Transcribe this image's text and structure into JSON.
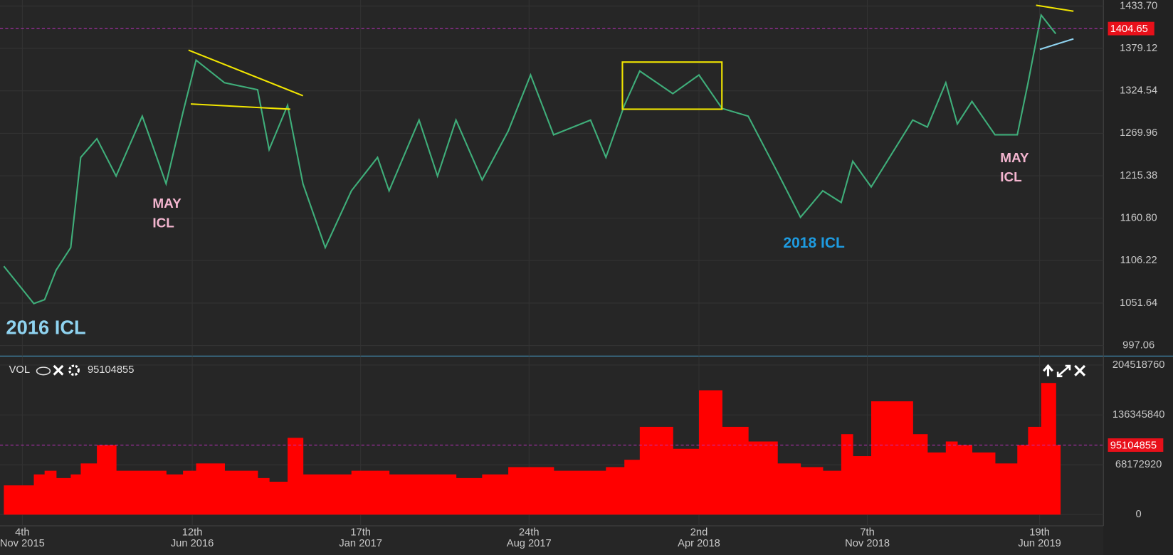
{
  "chart_data": [
    {
      "type": "line",
      "color": "#3fae7a",
      "x": [
        "2015-10-11",
        "2015-11-19",
        "2015-12-03",
        "2015-12-18",
        "2016-01-06",
        "2016-01-19",
        "2016-02-09",
        "2016-03-05",
        "2016-04-08",
        "2016-05-09",
        "2016-05-31",
        "2016-06-17",
        "2016-07-24",
        "2016-09-05",
        "2016-09-20",
        "2016-10-14",
        "2016-11-03",
        "2016-12-02",
        "2017-01-05",
        "2017-02-08",
        "2017-02-23",
        "2017-04-03",
        "2017-04-27",
        "2017-05-21",
        "2017-06-24",
        "2017-07-28",
        "2017-08-26",
        "2017-09-25",
        "2017-11-12",
        "2017-12-02",
        "2017-12-26",
        "2018-01-15",
        "2018-02-27",
        "2018-04-02",
        "2018-05-02",
        "2018-06-05",
        "2018-07-13",
        "2018-08-12",
        "2018-09-10",
        "2018-10-04",
        "2018-10-19",
        "2018-11-12",
        "2019-01-05",
        "2019-01-24",
        "2019-02-17",
        "2019-03-04",
        "2019-03-23",
        "2019-04-22",
        "2019-05-21",
        "2019-06-04",
        "2019-06-21",
        "2019-07-10"
      ],
      "values": [
        1099,
        1051,
        1056,
        1094,
        1123,
        1239,
        1263,
        1215,
        1292,
        1205,
        1297,
        1364,
        1335,
        1326,
        1249,
        1306,
        1205,
        1123,
        1196,
        1239,
        1196,
        1287,
        1215,
        1287,
        1210,
        1273,
        1345,
        1268,
        1287,
        1239,
        1306,
        1350,
        1321,
        1345,
        1302,
        1292,
        1220,
        1162,
        1196,
        1181,
        1234,
        1201,
        1287,
        1278,
        1335,
        1282,
        1311,
        1268,
        1268,
        1335,
        1422,
        1398
      ],
      "xlim": [
        "2015-10-06",
        "2019-09-10"
      ],
      "xticks": [
        {
          "value": "2015-11-04",
          "label": "4th"
        },
        {
          "value": "2016-06-12",
          "label": "12th"
        },
        {
          "value": "2017-01-17",
          "label": "17th"
        },
        {
          "value": "2017-08-24",
          "label": "24th"
        },
        {
          "value": "2018-04-02",
          "label": "2nd"
        },
        {
          "value": "2018-11-07",
          "label": "7th"
        },
        {
          "value": "2019-06-19",
          "label": "19th"
        }
      ],
      "xtick_sublabels": [
        "Nov 2015",
        "Jun 2016",
        "Jan 2017",
        "Aug 2017",
        "Apr 2018",
        "Nov 2018",
        "Jun 2019"
      ],
      "ylim": [
        983.5,
        1441.4
      ],
      "yticks": [
        {
          "value": 1433.7,
          "label": "1433.70"
        },
        1379.12,
        1324.54,
        1269.96,
        1215.38,
        {
          "value": 1160.8,
          "label": "1160.80"
        },
        1106.22,
        1051.64,
        997.06
      ],
      "current_value": 1404.65,
      "annotations": [
        {
          "lines": [
            "2016 ICL"
          ],
          "color": "#8fd3f0"
        },
        {
          "lines": [
            "MAY",
            "ICL"
          ],
          "color": "#f4b6d0"
        },
        {
          "lines": [
            "2018 ICL"
          ],
          "color": "#1e9be0"
        },
        {
          "lines": [
            "MAY",
            "ICL"
          ],
          "color": "#f4b6d0"
        }
      ]
    },
    {
      "type": "bar",
      "color": "#ff0000",
      "legend_label": "VOL",
      "values": [
        40000000,
        55000000,
        60000000,
        50000000,
        55000000,
        70000000,
        95000000,
        60000000,
        60000000,
        55000000,
        60000000,
        70000000,
        60000000,
        50000000,
        45000000,
        105000000,
        55000000,
        55000000,
        60000000,
        60000000,
        55000000,
        55000000,
        55000000,
        50000000,
        55000000,
        65000000,
        65000000,
        60000000,
        60000000,
        65000000,
        75000000,
        120000000,
        90000000,
        170000000,
        120000000,
        100000000,
        70000000,
        65000000,
        60000000,
        110000000,
        80000000,
        155000000,
        110000000,
        85000000,
        100000000,
        95000000,
        85000000,
        70000000,
        95000000,
        120000000,
        180000000,
        95104855
      ],
      "ylim": [
        -15300000,
        215800000
      ],
      "yticks": [
        0,
        68172920,
        136345840,
        204518760
      ],
      "current_value": 95104855
    }
  ]
}
